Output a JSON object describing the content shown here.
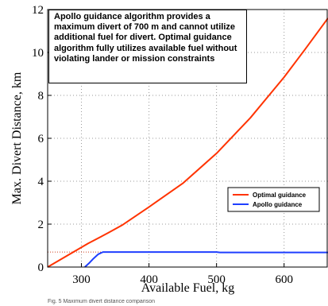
{
  "chart_data": {
    "type": "line",
    "xlabel": "Available Fuel, kg",
    "ylabel": "Max. Divert Distance, km",
    "xlim": [
      250,
      665
    ],
    "ylim": [
      0,
      12
    ],
    "x_ticks": [
      300,
      400,
      500,
      600
    ],
    "x_tick_labels": [
      "300",
      "400",
      "500",
      "600"
    ],
    "y_ticks": [
      0,
      2,
      4,
      6,
      8,
      10,
      12
    ],
    "y_tick_labels": [
      "0",
      "2",
      "4",
      "6",
      "8",
      "10",
      "12"
    ],
    "grid": true,
    "legend_position": "lower-right",
    "series": [
      {
        "name": "Optimal guidance",
        "color": "#ff3300",
        "x": [
          250,
          280,
          310,
          340,
          360,
          400,
          450,
          500,
          550,
          600,
          630,
          665
        ],
        "y": [
          0.0,
          0.55,
          1.1,
          1.6,
          1.95,
          2.8,
          3.9,
          5.3,
          6.95,
          8.85,
          10.1,
          11.6
        ]
      },
      {
        "name": "Apollo guidance",
        "color": "#1f3fff",
        "x": [
          305,
          312,
          318,
          325,
          332,
          400,
          500,
          505,
          600,
          665
        ],
        "y": [
          0.0,
          0.2,
          0.4,
          0.6,
          0.7,
          0.7,
          0.7,
          0.68,
          0.68,
          0.68
        ]
      }
    ],
    "reference_line": {
      "y": 0.7,
      "x_from": 250,
      "x_to": 332,
      "color": "#d04020",
      "style": "dotted"
    },
    "annotation": "Apollo guidance algorithm provides a maximum divert of 700 m and cannot utilize additional fuel for divert. Optimal guidance algorithm fully utilizes available fuel without violating lander or mission constraints"
  },
  "caption_fragment": "Fig. 5 Maximum divert distance comparison"
}
